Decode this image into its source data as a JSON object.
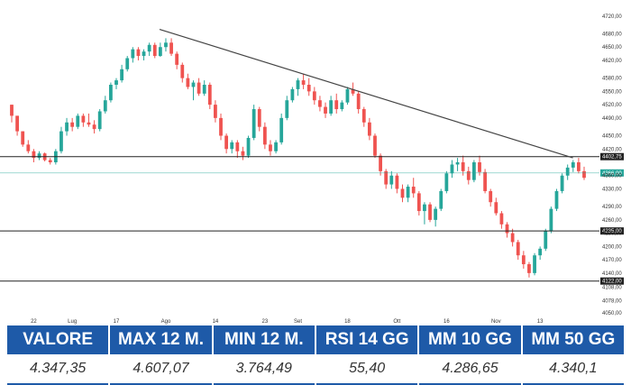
{
  "chart_data": {
    "type": "candlestick",
    "y_axis_ticks": [
      "4720,00",
      "4680,00",
      "4650,00",
      "4620,00",
      "4580,00",
      "4550,00",
      "4520,00",
      "4490,00",
      "4450,00",
      "4420,00",
      "4360,00",
      "4330,00",
      "4290,00",
      "4260,00",
      "4230,00",
      "4200,00",
      "4170,00",
      "4140,00",
      "4108,00",
      "4078,00",
      "4050,00"
    ],
    "x_axis_ticks": [
      "22",
      "Lug",
      "17",
      "Ago",
      "14",
      "23",
      "Set",
      "18",
      "Ott",
      "16",
      "Nov",
      "13"
    ],
    "ylim": [
      4040,
      4740
    ],
    "horizontal_levels": [
      {
        "value": 4402.75,
        "label": "4402,75"
      },
      {
        "value": 4235.0,
        "label": "4235,00"
      },
      {
        "value": 4122.0,
        "label": "4122,00"
      }
    ],
    "current_price": {
      "value": 4366.0,
      "label": "4366,00"
    },
    "trendline": [
      {
        "x": 0.255,
        "y": 4690
      },
      {
        "x": 0.955,
        "y": 4400
      }
    ],
    "colors": {
      "up": "#26a69a",
      "down": "#ef5350",
      "level": "#222222",
      "trend": "#444444",
      "current": "#26a69a"
    },
    "candles": [
      [
        4520,
        4520,
        4480,
        4495
      ],
      [
        4495,
        4495,
        4450,
        4460
      ],
      [
        4460,
        4460,
        4425,
        4430
      ],
      [
        4430,
        4440,
        4410,
        4415
      ],
      [
        4415,
        4420,
        4390,
        4400
      ],
      [
        4400,
        4415,
        4395,
        4410
      ],
      [
        4410,
        4412,
        4392,
        4395
      ],
      [
        4395,
        4400,
        4385,
        4390
      ],
      [
        4390,
        4420,
        4385,
        4415
      ],
      [
        4415,
        4470,
        4410,
        4460
      ],
      [
        4460,
        4490,
        4450,
        4480
      ],
      [
        4480,
        4490,
        4460,
        4470
      ],
      [
        4470,
        4500,
        4465,
        4495
      ],
      [
        4495,
        4500,
        4470,
        4480
      ],
      [
        4480,
        4500,
        4470,
        4475
      ],
      [
        4475,
        4485,
        4455,
        4465
      ],
      [
        4465,
        4510,
        4460,
        4505
      ],
      [
        4505,
        4540,
        4500,
        4530
      ],
      [
        4530,
        4570,
        4525,
        4565
      ],
      [
        4565,
        4580,
        4555,
        4575
      ],
      [
        4575,
        4610,
        4570,
        4600
      ],
      [
        4600,
        4630,
        4595,
        4625
      ],
      [
        4625,
        4650,
        4615,
        4645
      ],
      [
        4645,
        4650,
        4620,
        4630
      ],
      [
        4630,
        4645,
        4620,
        4640
      ],
      [
        4640,
        4660,
        4630,
        4655
      ],
      [
        4655,
        4660,
        4625,
        4630
      ],
      [
        4630,
        4660,
        4628,
        4650
      ],
      [
        4650,
        4670,
        4640,
        4660
      ],
      [
        4660,
        4670,
        4630,
        4635
      ],
      [
        4635,
        4640,
        4600,
        4610
      ],
      [
        4610,
        4615,
        4570,
        4580
      ],
      [
        4580,
        4590,
        4555,
        4560
      ],
      [
        4560,
        4575,
        4530,
        4570
      ],
      [
        4570,
        4580,
        4540,
        4545
      ],
      [
        4545,
        4575,
        4540,
        4565
      ],
      [
        4565,
        4570,
        4510,
        4520
      ],
      [
        4520,
        4530,
        4480,
        4490
      ],
      [
        4490,
        4500,
        4440,
        4450
      ],
      [
        4450,
        4455,
        4410,
        4420
      ],
      [
        4420,
        4440,
        4410,
        4435
      ],
      [
        4435,
        4440,
        4400,
        4415
      ],
      [
        4415,
        4425,
        4395,
        4405
      ],
      [
        4405,
        4450,
        4400,
        4445
      ],
      [
        4445,
        4520,
        4440,
        4510
      ],
      [
        4510,
        4515,
        4460,
        4470
      ],
      [
        4470,
        4480,
        4420,
        4430
      ],
      [
        4430,
        4440,
        4405,
        4415
      ],
      [
        4415,
        4440,
        4410,
        4435
      ],
      [
        4435,
        4500,
        4430,
        4490
      ],
      [
        4490,
        4540,
        4485,
        4530
      ],
      [
        4530,
        4560,
        4525,
        4555
      ],
      [
        4555,
        4580,
        4540,
        4575
      ],
      [
        4575,
        4590,
        4555,
        4565
      ],
      [
        4565,
        4580,
        4540,
        4550
      ],
      [
        4550,
        4560,
        4520,
        4530
      ],
      [
        4530,
        4540,
        4505,
        4515
      ],
      [
        4515,
        4525,
        4490,
        4500
      ],
      [
        4500,
        4540,
        4495,
        4530
      ],
      [
        4530,
        4545,
        4500,
        4510
      ],
      [
        4510,
        4530,
        4505,
        4525
      ],
      [
        4525,
        4560,
        4520,
        4555
      ],
      [
        4555,
        4570,
        4540,
        4545
      ],
      [
        4545,
        4550,
        4500,
        4510
      ],
      [
        4510,
        4515,
        4470,
        4480
      ],
      [
        4480,
        4490,
        4440,
        4450
      ],
      [
        4450,
        4455,
        4400,
        4405
      ],
      [
        4405,
        4410,
        4360,
        4370
      ],
      [
        4370,
        4375,
        4330,
        4340
      ],
      [
        4340,
        4370,
        4330,
        4360
      ],
      [
        4360,
        4365,
        4320,
        4330
      ],
      [
        4330,
        4340,
        4300,
        4310
      ],
      [
        4310,
        4340,
        4300,
        4335
      ],
      [
        4335,
        4355,
        4310,
        4320
      ],
      [
        4320,
        4325,
        4270,
        4280
      ],
      [
        4280,
        4300,
        4250,
        4295
      ],
      [
        4295,
        4300,
        4255,
        4260
      ],
      [
        4260,
        4290,
        4245,
        4285
      ],
      [
        4285,
        4330,
        4280,
        4325
      ],
      [
        4325,
        4370,
        4320,
        4365
      ],
      [
        4365,
        4395,
        4355,
        4385
      ],
      [
        4385,
        4400,
        4370,
        4390
      ],
      [
        4390,
        4405,
        4360,
        4370
      ],
      [
        4370,
        4380,
        4340,
        4350
      ],
      [
        4350,
        4395,
        4345,
        4390
      ],
      [
        4390,
        4405,
        4360,
        4368
      ],
      [
        4368,
        4375,
        4320,
        4325
      ],
      [
        4325,
        4330,
        4290,
        4300
      ],
      [
        4300,
        4310,
        4270,
        4275
      ],
      [
        4275,
        4280,
        4240,
        4250
      ],
      [
        4250,
        4255,
        4220,
        4230
      ],
      [
        4230,
        4240,
        4200,
        4210
      ],
      [
        4210,
        4215,
        4170,
        4180
      ],
      [
        4180,
        4190,
        4150,
        4160
      ],
      [
        4160,
        4165,
        4130,
        4140
      ],
      [
        4140,
        4185,
        4135,
        4180
      ],
      [
        4180,
        4200,
        4170,
        4195
      ],
      [
        4195,
        4240,
        4190,
        4235
      ],
      [
        4235,
        4290,
        4230,
        4285
      ],
      [
        4285,
        4330,
        4280,
        4325
      ],
      [
        4325,
        4365,
        4320,
        4360
      ],
      [
        4360,
        4385,
        4350,
        4378
      ],
      [
        4378,
        4395,
        4368,
        4390
      ],
      [
        4390,
        4400,
        4365,
        4370
      ],
      [
        4370,
        4380,
        4350,
        4355
      ]
    ]
  },
  "table": {
    "headers": [
      "VALORE",
      "MAX 12 M.",
      "MIN 12 M.",
      "RSI 14 GG",
      "MM 10 GG",
      "MM 50 GG"
    ],
    "values": [
      "4.347,35",
      "4.607,07",
      "3.764,49",
      "55,40",
      "4.286,65",
      "4.340,1"
    ]
  }
}
